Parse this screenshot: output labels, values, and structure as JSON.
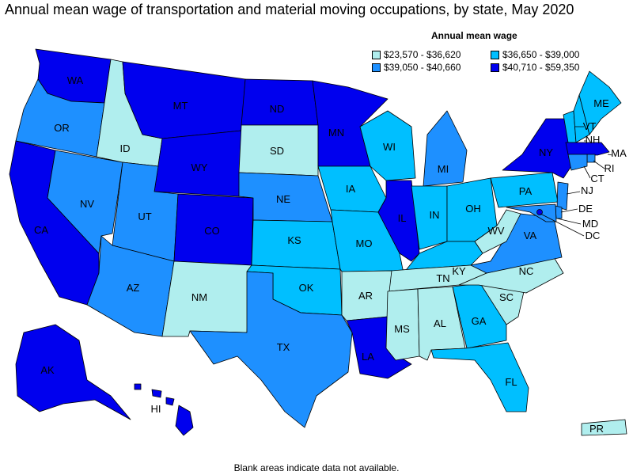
{
  "title": "Annual mean wage of transportation and material moving occupations, by state, May 2020",
  "legend": {
    "title": "Annual mean wage",
    "items": [
      {
        "key": "b1",
        "label": "$23,570 - $36,620",
        "color": "#b0eeee"
      },
      {
        "key": "b2",
        "label": "$36,650 - $39,000",
        "color": "#00bfff"
      },
      {
        "key": "b3",
        "label": "$39,050 - $40,660",
        "color": "#1e90ff"
      },
      {
        "key": "b4",
        "label": "$40,710 - $59,350",
        "color": "#0000ee"
      }
    ]
  },
  "footnote": "Blank areas indicate data not available.",
  "states": [
    {
      "abbr": "WA",
      "bin": "b4"
    },
    {
      "abbr": "OR",
      "bin": "b3"
    },
    {
      "abbr": "CA",
      "bin": "b4"
    },
    {
      "abbr": "NV",
      "bin": "b3"
    },
    {
      "abbr": "ID",
      "bin": "b1"
    },
    {
      "abbr": "MT",
      "bin": "b4"
    },
    {
      "abbr": "WY",
      "bin": "b4"
    },
    {
      "abbr": "UT",
      "bin": "b3"
    },
    {
      "abbr": "AZ",
      "bin": "b3"
    },
    {
      "abbr": "CO",
      "bin": "b4"
    },
    {
      "abbr": "NM",
      "bin": "b1"
    },
    {
      "abbr": "ND",
      "bin": "b4"
    },
    {
      "abbr": "SD",
      "bin": "b1"
    },
    {
      "abbr": "NE",
      "bin": "b3"
    },
    {
      "abbr": "KS",
      "bin": "b2"
    },
    {
      "abbr": "OK",
      "bin": "b2"
    },
    {
      "abbr": "TX",
      "bin": "b3"
    },
    {
      "abbr": "MN",
      "bin": "b4"
    },
    {
      "abbr": "IA",
      "bin": "b2"
    },
    {
      "abbr": "MO",
      "bin": "b2"
    },
    {
      "abbr": "AR",
      "bin": "b1"
    },
    {
      "abbr": "LA",
      "bin": "b4"
    },
    {
      "abbr": "WI",
      "bin": "b2"
    },
    {
      "abbr": "IL",
      "bin": "b4"
    },
    {
      "abbr": "MI",
      "bin": "b3"
    },
    {
      "abbr": "IN",
      "bin": "b2"
    },
    {
      "abbr": "OH",
      "bin": "b2"
    },
    {
      "abbr": "KY",
      "bin": "b2"
    },
    {
      "abbr": "TN",
      "bin": "b1"
    },
    {
      "abbr": "MS",
      "bin": "b1"
    },
    {
      "abbr": "AL",
      "bin": "b1"
    },
    {
      "abbr": "GA",
      "bin": "b2"
    },
    {
      "abbr": "FL",
      "bin": "b2"
    },
    {
      "abbr": "SC",
      "bin": "b1"
    },
    {
      "abbr": "NC",
      "bin": "b1"
    },
    {
      "abbr": "VA",
      "bin": "b3"
    },
    {
      "abbr": "WV",
      "bin": "b1"
    },
    {
      "abbr": "PA",
      "bin": "b2"
    },
    {
      "abbr": "NY",
      "bin": "b4"
    },
    {
      "abbr": "VT",
      "bin": "b2"
    },
    {
      "abbr": "NH",
      "bin": "b2"
    },
    {
      "abbr": "ME",
      "bin": "b2"
    },
    {
      "abbr": "MA",
      "bin": "b4"
    },
    {
      "abbr": "RI",
      "bin": "b3"
    },
    {
      "abbr": "CT",
      "bin": "b3"
    },
    {
      "abbr": "NJ",
      "bin": "b3"
    },
    {
      "abbr": "DE",
      "bin": "b3"
    },
    {
      "abbr": "MD",
      "bin": "b3"
    },
    {
      "abbr": "DC",
      "bin": "b4"
    },
    {
      "abbr": "AK",
      "bin": "b4"
    },
    {
      "abbr": "HI",
      "bin": "b4"
    },
    {
      "abbr": "PR",
      "bin": "b1"
    }
  ]
}
